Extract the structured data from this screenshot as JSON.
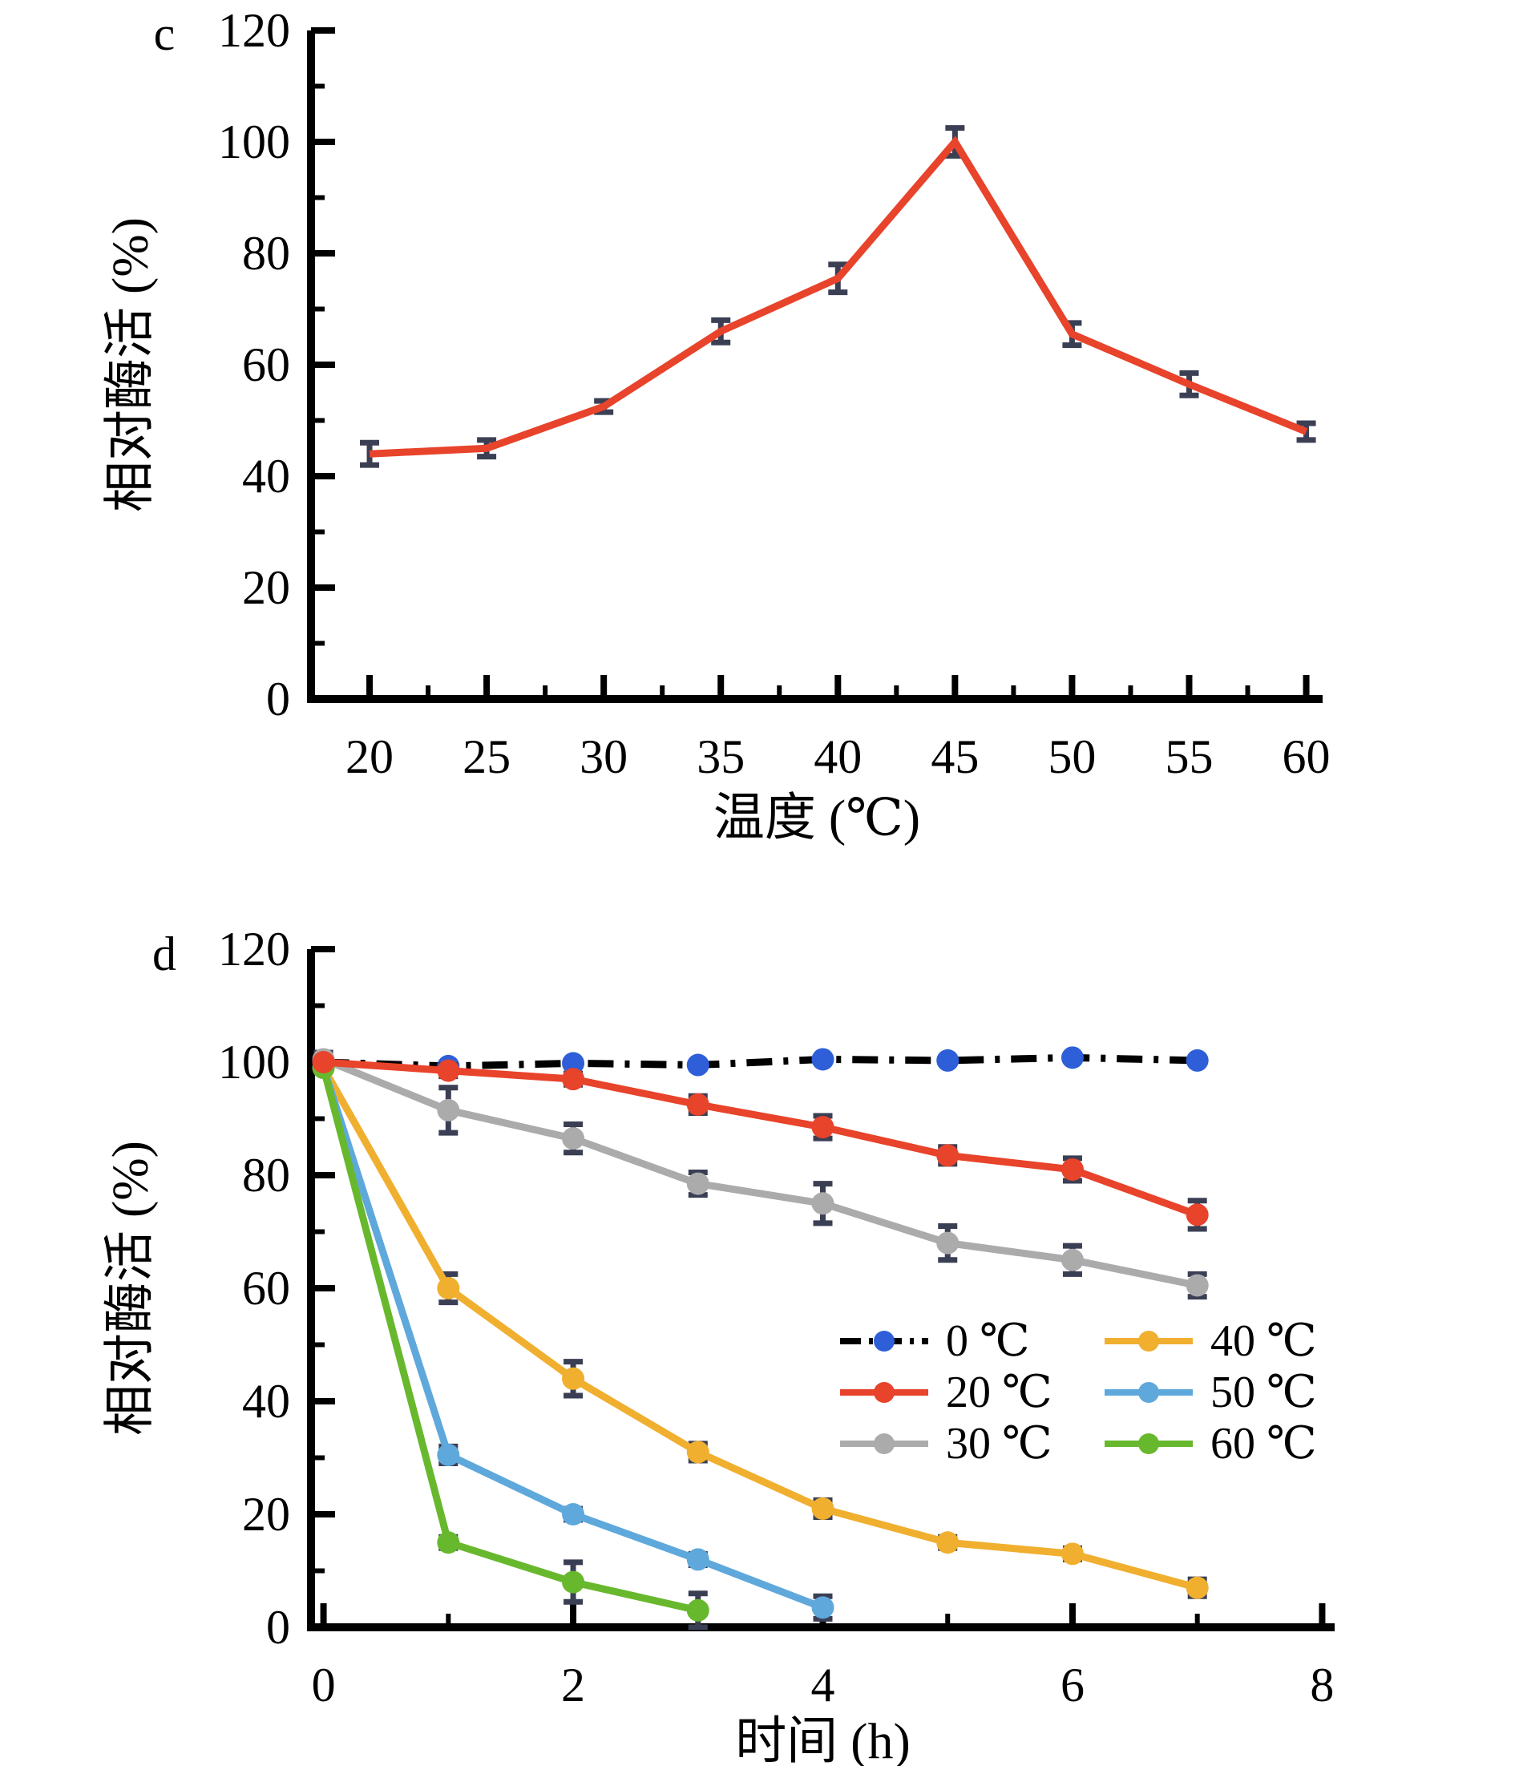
{
  "figure": {
    "background": "#ffffff",
    "description_labels": {
      "panel_c_letter": "c",
      "panel_d_letter": "d"
    }
  },
  "chart_data": [
    {
      "panel": "c",
      "letter": "c",
      "type": "line",
      "xlabel": "温度 (℃)",
      "ylabel": "相对酶活 (%)",
      "xlim": [
        17.5,
        60.7
      ],
      "ylim": [
        0,
        120
      ],
      "xticks": [
        20,
        25,
        30,
        35,
        40,
        45,
        50,
        55,
        60
      ],
      "xminor": [
        22.5,
        27.5,
        32.5,
        37.5,
        42.5,
        47.5,
        52.5,
        57.5
      ],
      "yticks": [
        0,
        20,
        40,
        60,
        80,
        100,
        120
      ],
      "yminor": [
        10,
        30,
        50,
        70,
        90,
        110
      ],
      "grid": false,
      "errorbar_color": "#3B3F54",
      "legend": false,
      "series": [
        {
          "name": "relative-activity",
          "label": "",
          "color": "#E8432B",
          "marker": "none",
          "dash": "solid",
          "x": [
            20,
            25,
            30,
            35,
            40,
            45,
            50,
            55,
            60
          ],
          "y": [
            44,
            45,
            52.5,
            66,
            75.5,
            100,
            65.5,
            56.5,
            48
          ],
          "err": [
            2,
            1.5,
            1,
            2,
            2.5,
            2.5,
            2,
            2,
            1.5
          ]
        }
      ]
    },
    {
      "panel": "d",
      "letter": "d",
      "type": "line",
      "xlabel": "时间 (h)",
      "ylabel": "相对酶活 (%)",
      "xlim": [
        -0.1,
        8.1
      ],
      "ylim": [
        0,
        120
      ],
      "xticks": [
        0,
        2,
        4,
        6,
        8
      ],
      "xminor": [
        1,
        3,
        5,
        7
      ],
      "yticks": [
        0,
        20,
        40,
        60,
        80,
        100,
        120
      ],
      "yminor": [
        10,
        30,
        50,
        70,
        90,
        110
      ],
      "grid": false,
      "errorbar_color": "#3B3F54",
      "legend": true,
      "legend_position": "inside-right",
      "series": [
        {
          "name": "series-0C",
          "label": "0 ℃",
          "color": "#000000",
          "marker_color": "#2E5FD8",
          "marker": "circle",
          "dash": "dashdot",
          "x": [
            0,
            1,
            2,
            3,
            4,
            5,
            6,
            7
          ],
          "y": [
            100,
            99.3,
            99.8,
            99.5,
            100.5,
            100.3,
            100.8,
            100.3
          ],
          "err": [
            0,
            0,
            0,
            0,
            0,
            0,
            0,
            0
          ]
        },
        {
          "name": "series-30C",
          "label": "30 ℃",
          "color": "#ABABAB",
          "marker": "circle",
          "dash": "solid",
          "x": [
            0,
            1,
            2,
            3,
            4,
            5,
            6,
            7
          ],
          "y": [
            100.5,
            91.5,
            86.5,
            78.5,
            75,
            68,
            65,
            60.5
          ],
          "err": [
            1.2,
            4,
            2.5,
            2,
            3.5,
            3,
            2.5,
            2
          ]
        },
        {
          "name": "series-40C",
          "label": "40 ℃",
          "color": "#F0AF2F",
          "marker": "circle",
          "dash": "solid",
          "x": [
            0,
            1,
            2,
            3,
            4,
            5,
            6,
            7
          ],
          "y": [
            99,
            60,
            44,
            31,
            21,
            15,
            13,
            7
          ],
          "err": [
            0,
            2.5,
            3,
            1.5,
            1.5,
            1,
            1,
            1.5
          ]
        },
        {
          "name": "series-50C",
          "label": "50 ℃",
          "color": "#5FA8DC",
          "marker": "circle",
          "dash": "solid",
          "x": [
            0,
            1,
            2,
            3,
            4
          ],
          "y": [
            99,
            30.5,
            20,
            12,
            3.5
          ],
          "err": [
            0,
            1.5,
            1,
            1,
            2
          ]
        },
        {
          "name": "series-60C",
          "label": "60 ℃",
          "color": "#68B82D",
          "marker": "circle",
          "dash": "solid",
          "x": [
            0,
            1,
            2,
            3
          ],
          "y": [
            99,
            15,
            8,
            3
          ],
          "err": [
            0,
            1,
            3.5,
            3
          ]
        },
        {
          "name": "series-20C",
          "label": "20 ℃",
          "color": "#E8432B",
          "marker": "circle",
          "dash": "solid",
          "x": [
            0,
            1,
            2,
            3,
            4,
            5,
            6,
            7
          ],
          "y": [
            100,
            98.5,
            97,
            92.5,
            88.5,
            83.5,
            81,
            73
          ],
          "err": [
            0,
            1,
            1,
            1.5,
            2,
            1.5,
            2,
            2.5
          ]
        }
      ],
      "legend_order": [
        "series-0C",
        "series-20C",
        "series-30C",
        "series-40C",
        "series-50C",
        "series-60C"
      ]
    }
  ]
}
